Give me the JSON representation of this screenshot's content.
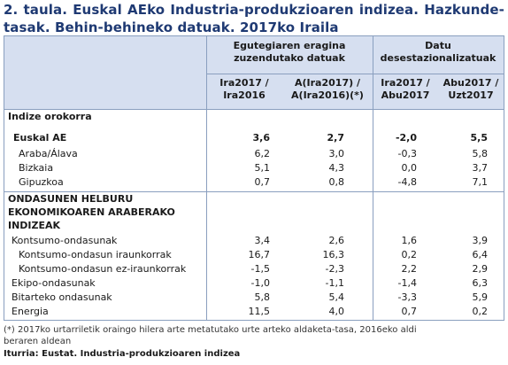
{
  "title": "2. taula. Euskal AEko Industria-produkzioaren indizea. Hazkunde-tasak. Behin-behineko datuak. 2017ko Iraila",
  "groups": [
    "Egutegiaren eragina zuzendutako datuak",
    "Datu desestazionalizatuak"
  ],
  "columns": [
    "Ira2017 / Ira2016",
    "A(Ira2017) / A(Ira2016)(*)",
    "Ira2017 / Abu2017",
    "Abu2017 / Uzt2017"
  ],
  "section1": "Indize orokorra",
  "section2_lines": [
    "ONDASUNEN HELBURU",
    "EKONOMIKOAREN ARABERAKO",
    "INDIZEAK"
  ],
  "rows": [
    {
      "label": "Euskal AE",
      "v": [
        "3,6",
        "2,7",
        "-2,0",
        "5,5"
      ]
    },
    {
      "label": "Araba/Álava",
      "v": [
        "6,2",
        "3,0",
        "-0,3",
        "5,8"
      ]
    },
    {
      "label": "Bizkaia",
      "v": [
        "5,1",
        "4,3",
        "0,0",
        "3,7"
      ]
    },
    {
      "label": "Gipuzkoa",
      "v": [
        "0,7",
        "0,8",
        "-4,8",
        "7,1"
      ]
    },
    {
      "label": "Kontsumo-ondasunak",
      "v": [
        "3,4",
        "2,6",
        "1,6",
        "3,9"
      ]
    },
    {
      "label": "Kontsumo-ondasun iraunkorrak",
      "v": [
        "16,7",
        "16,3",
        "0,2",
        "6,4"
      ]
    },
    {
      "label": "Kontsumo-ondasun ez-iraunkorrak",
      "v": [
        "-1,5",
        "-2,3",
        "2,2",
        "2,9"
      ]
    },
    {
      "label": "Ekipo-ondasunak",
      "v": [
        "-1,0",
        "-1,1",
        "-1,4",
        "6,3"
      ]
    },
    {
      "label": "Bitarteko ondasunak",
      "v": [
        "5,8",
        "5,4",
        "-3,3",
        "5,9"
      ]
    },
    {
      "label": "Energia",
      "v": [
        "11,5",
        "4,0",
        "0,7",
        "0,2"
      ]
    }
  ],
  "footnote_lines": [
    "(*) 2017ko urtarriletik oraingo hilera arte metatutako urte arteko aldaketa-tasa, 2016eko aldi",
    "beraren aldean"
  ],
  "source": "Iturria: Eustat. Industria-produkzioaren indizea"
}
